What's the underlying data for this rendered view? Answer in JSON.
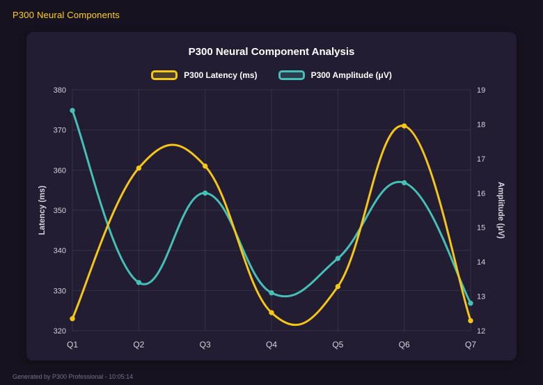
{
  "page": {
    "header_title": "P300 Neural Components",
    "footer_text": "Generated by P300 Professional - 10:05:14"
  },
  "chart_data": {
    "type": "line",
    "title": "P300 Neural Component Analysis",
    "categories": [
      "Q1",
      "Q2",
      "Q3",
      "Q4",
      "Q5",
      "Q6",
      "Q7"
    ],
    "series": [
      {
        "name": "P300 Latency (ms)",
        "color": "#f5c518",
        "axis": "left",
        "values": [
          323,
          360.5,
          361,
          324.5,
          331,
          371,
          322.5
        ]
      },
      {
        "name": "P300 Amplitude (μV)",
        "color": "#46c0b7",
        "axis": "right",
        "values": [
          18.4,
          13.4,
          16.0,
          13.1,
          14.1,
          16.3,
          12.8
        ]
      }
    ],
    "y_left": {
      "label": "Latency (ms)",
      "min": 320,
      "max": 380,
      "step": 10
    },
    "y_right": {
      "label": "Amplitude (μV)",
      "min": 12,
      "max": 19,
      "step": 1
    },
    "grid": true,
    "legend_position": "top",
    "curve_tension": 0.4
  },
  "colors": {
    "page_bg": "#17121f",
    "card_bg": "#221d32",
    "header_text": "#ffd21e",
    "title_text": "#ffffff",
    "tick_text": "#d4d2de",
    "grid_line": "rgba(255,255,255,0.09)",
    "footer_text": "#76718a",
    "latency_line": "#f5c518",
    "amplitude_line": "#46c0b7"
  }
}
